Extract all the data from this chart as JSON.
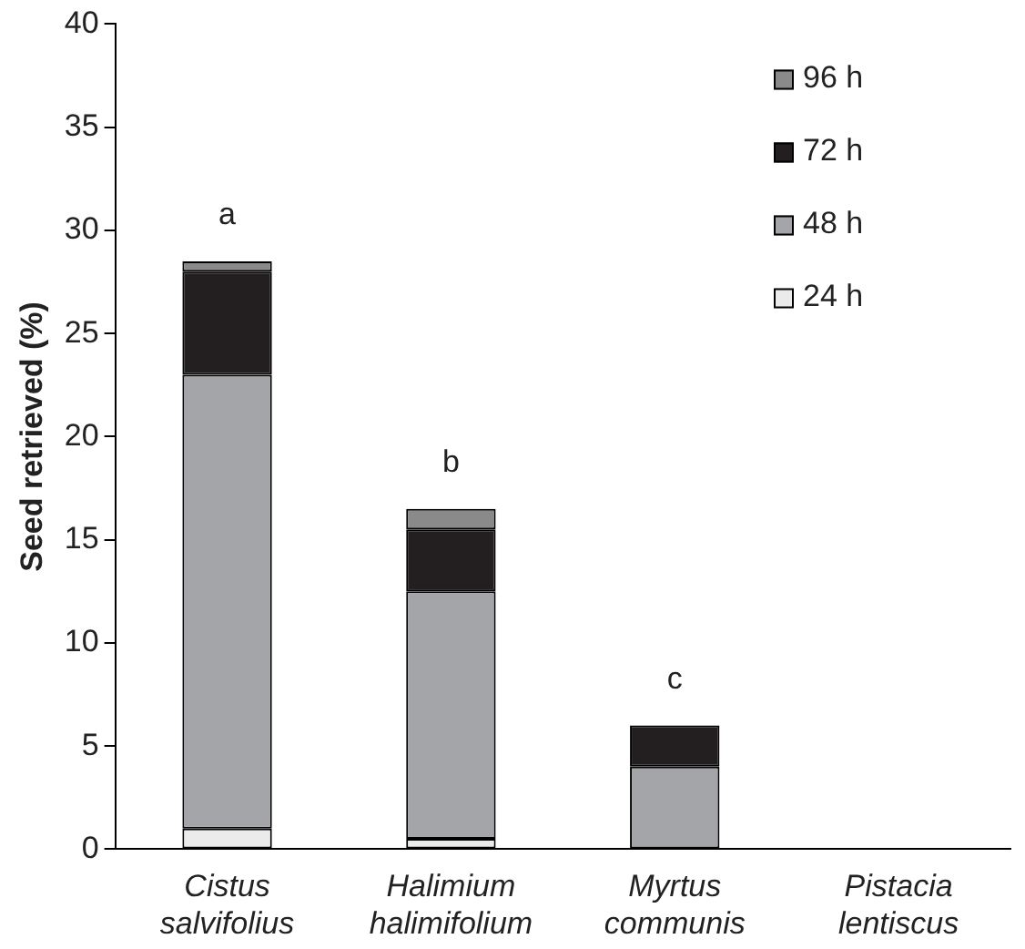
{
  "chart_data": {
    "type": "bar",
    "stacked": true,
    "ylabel": "Seed retrieved (%)",
    "categories": [
      "Cistus salvifolius",
      "Halimium halimifolium",
      "Myrtus communis",
      "Pistacia lentiscus"
    ],
    "series": [
      {
        "name": "24 h",
        "color": "#ebebeb",
        "values": [
          1,
          0.5,
          0,
          0
        ]
      },
      {
        "name": "48 h",
        "color": "#a4a5a8",
        "values": [
          22,
          12,
          4,
          0
        ]
      },
      {
        "name": "72 h",
        "color": "#231f20",
        "values": [
          5,
          3,
          2,
          0
        ]
      },
      {
        "name": "96 h",
        "color": "#8a8a8a",
        "values": [
          0.5,
          1,
          0,
          0
        ]
      }
    ],
    "ylim": [
      0,
      40
    ],
    "yticks": [
      0,
      5,
      10,
      15,
      20,
      25,
      30,
      35,
      40
    ],
    "grid": false,
    "legend": "top right",
    "annotations": [
      "a",
      "b",
      "c"
    ]
  }
}
